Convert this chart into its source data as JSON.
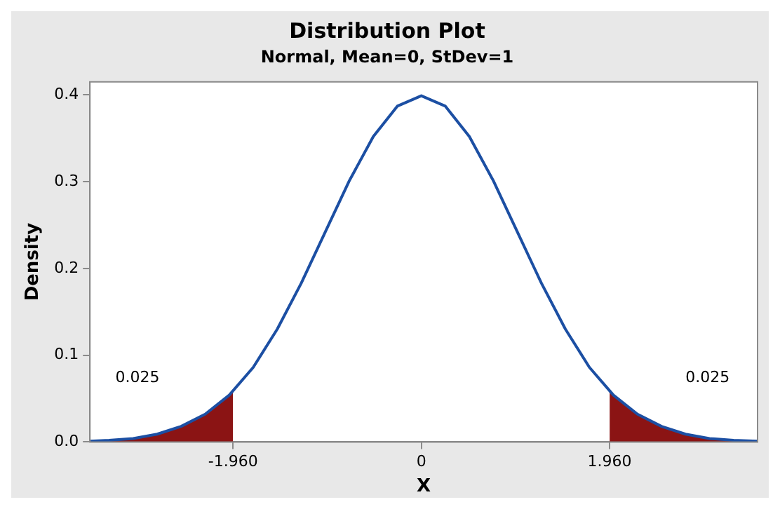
{
  "chart_data": {
    "type": "line",
    "title": "Distribution Plot",
    "subtitle": "Normal, Mean=0, StDev=1",
    "xlabel": "X",
    "ylabel": "Density",
    "xlim": [
      -3.45,
      3.5
    ],
    "ylim": [
      0,
      0.415
    ],
    "xticks": [
      {
        "value": -1.96,
        "label": "-1.960"
      },
      0,
      {
        "value": 1.96,
        "label": "1.960"
      }
    ],
    "yticks": [
      {
        "value": 0,
        "label": "0.0"
      },
      0.1,
      0.2,
      0.3,
      0.4
    ],
    "grid": false,
    "legend": false,
    "marker": "none",
    "line_style": "solid",
    "series": [
      {
        "type": "line",
        "color": "#1c4fa3",
        "x": [
          -3.45,
          -3.25,
          -3,
          -2.75,
          -2.5,
          -2.25,
          -2,
          -1.75,
          -1.5,
          -1.25,
          -1,
          -0.75,
          -0.5,
          -0.25,
          0,
          0.25,
          0.5,
          0.75,
          1,
          1.25,
          1.5,
          1.75,
          2,
          2.25,
          2.5,
          2.75,
          3,
          3.25,
          3.5
        ],
        "values": [
          0.001,
          0.002,
          0.004,
          0.009,
          0.018,
          0.032,
          0.054,
          0.086,
          0.13,
          0.183,
          0.242,
          0.301,
          0.352,
          0.387,
          0.399,
          0.387,
          0.352,
          0.301,
          0.242,
          0.183,
          0.13,
          0.086,
          0.054,
          0.032,
          0.018,
          0.009,
          0.004,
          0.002,
          0.001
        ]
      },
      {
        "type": "area",
        "color": "#8b1414",
        "x": [
          -3.45,
          -3.25,
          -3,
          -2.75,
          -2.5,
          -2.25,
          -2,
          -1.96
        ],
        "values": [
          0.001,
          0.002,
          0.004,
          0.009,
          0.018,
          0.032,
          0.054,
          0.058
        ]
      },
      {
        "type": "area",
        "color": "#8b1414",
        "x": [
          1.96,
          2,
          2.25,
          2.5,
          2.75,
          3,
          3.25,
          3.5
        ],
        "values": [
          0.058,
          0.054,
          0.032,
          0.018,
          0.009,
          0.004,
          0.002,
          0.001
        ]
      }
    ],
    "annotations": [
      "0.025",
      "0.025"
    ]
  }
}
